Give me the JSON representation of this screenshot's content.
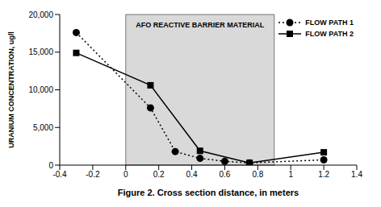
{
  "chart_data": {
    "type": "line",
    "xlabel": "Figure 2. Cross section distance, in meters",
    "ylabel": "URANIUM CONCENTRATION, ug/l",
    "xlim": [
      -0.4,
      1.4
    ],
    "xticks": [
      -0.4,
      -0.2,
      0,
      0.2,
      0.4,
      0.6,
      0.8,
      1,
      1.2,
      1.4
    ],
    "ylim": [
      0,
      20000
    ],
    "yticks": [
      0,
      {
        "value": 5000,
        "label": "5,000"
      },
      {
        "value": 10000,
        "label": "10,000"
      },
      {
        "value": 15000,
        "label": "15,000"
      },
      {
        "value": 20000,
        "label": "20,000"
      }
    ],
    "grid": false,
    "legend": "upper right",
    "shaded_region": {
      "x": [
        0,
        0.9
      ],
      "label": "AFO REACTIVE BARRIER MATERIAL",
      "color": "#d9d9d9"
    },
    "series": [
      {
        "name": "FLOW PATH 1",
        "color": "#000000",
        "marker": "circle",
        "line_style": "dotted",
        "x": [
          -0.3,
          0.15,
          0.3,
          0.45,
          0.6,
          0.75,
          1.2
        ],
        "values": [
          17600,
          7600,
          1800,
          900,
          500,
          300,
          700
        ]
      },
      {
        "name": "FLOW PATH 2",
        "color": "#000000",
        "marker": "square",
        "line_style": "solid",
        "x": [
          -0.3,
          0.15,
          0.45,
          0.75,
          1.2
        ],
        "values": [
          14900,
          10600,
          1900,
          300,
          1700
        ]
      }
    ]
  }
}
